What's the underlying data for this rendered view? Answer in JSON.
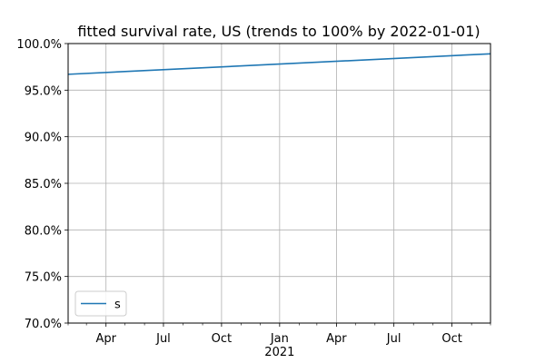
{
  "chart_data": {
    "type": "line",
    "title": "fitted survival rate, US (trends to 100% by 2022-01-01)",
    "xlabel": "",
    "ylabel": "",
    "x_range": [
      "2020-02-01",
      "2021-12-01"
    ],
    "ylim": [
      70.0,
      100.0
    ],
    "y_ticks": [
      70.0,
      75.0,
      80.0,
      85.0,
      90.0,
      95.0,
      100.0
    ],
    "y_tick_labels": [
      "70.0%",
      "75.0%",
      "80.0%",
      "85.0%",
      "90.0%",
      "95.0%",
      "100.0%"
    ],
    "x_major_ticks": [
      "2020-04-01",
      "2020-07-01",
      "2020-10-01",
      "2021-01-01",
      "2021-04-01",
      "2021-07-01",
      "2021-10-01"
    ],
    "x_tick_labels": [
      "Apr",
      "Jul",
      "Oct",
      "Jan",
      "Apr",
      "Jul",
      "Oct"
    ],
    "x_minor_ticks": [
      "2020-02-01",
      "2020-03-01",
      "2020-05-01",
      "2020-06-01",
      "2020-08-01",
      "2020-09-01",
      "2020-11-01",
      "2020-12-01",
      "2021-02-01",
      "2021-03-01",
      "2021-05-01",
      "2021-06-01",
      "2021-08-01",
      "2021-09-01",
      "2021-11-01",
      "2021-12-01"
    ],
    "year_label": "2021",
    "year_label_at": "2021-01-01",
    "grid": true,
    "legend_placement": "lower-left",
    "series": [
      {
        "name": "s",
        "color": "#1f77b4",
        "x": [
          "2020-02-01",
          "2021-12-01"
        ],
        "y": [
          96.7,
          98.9
        ]
      }
    ]
  }
}
